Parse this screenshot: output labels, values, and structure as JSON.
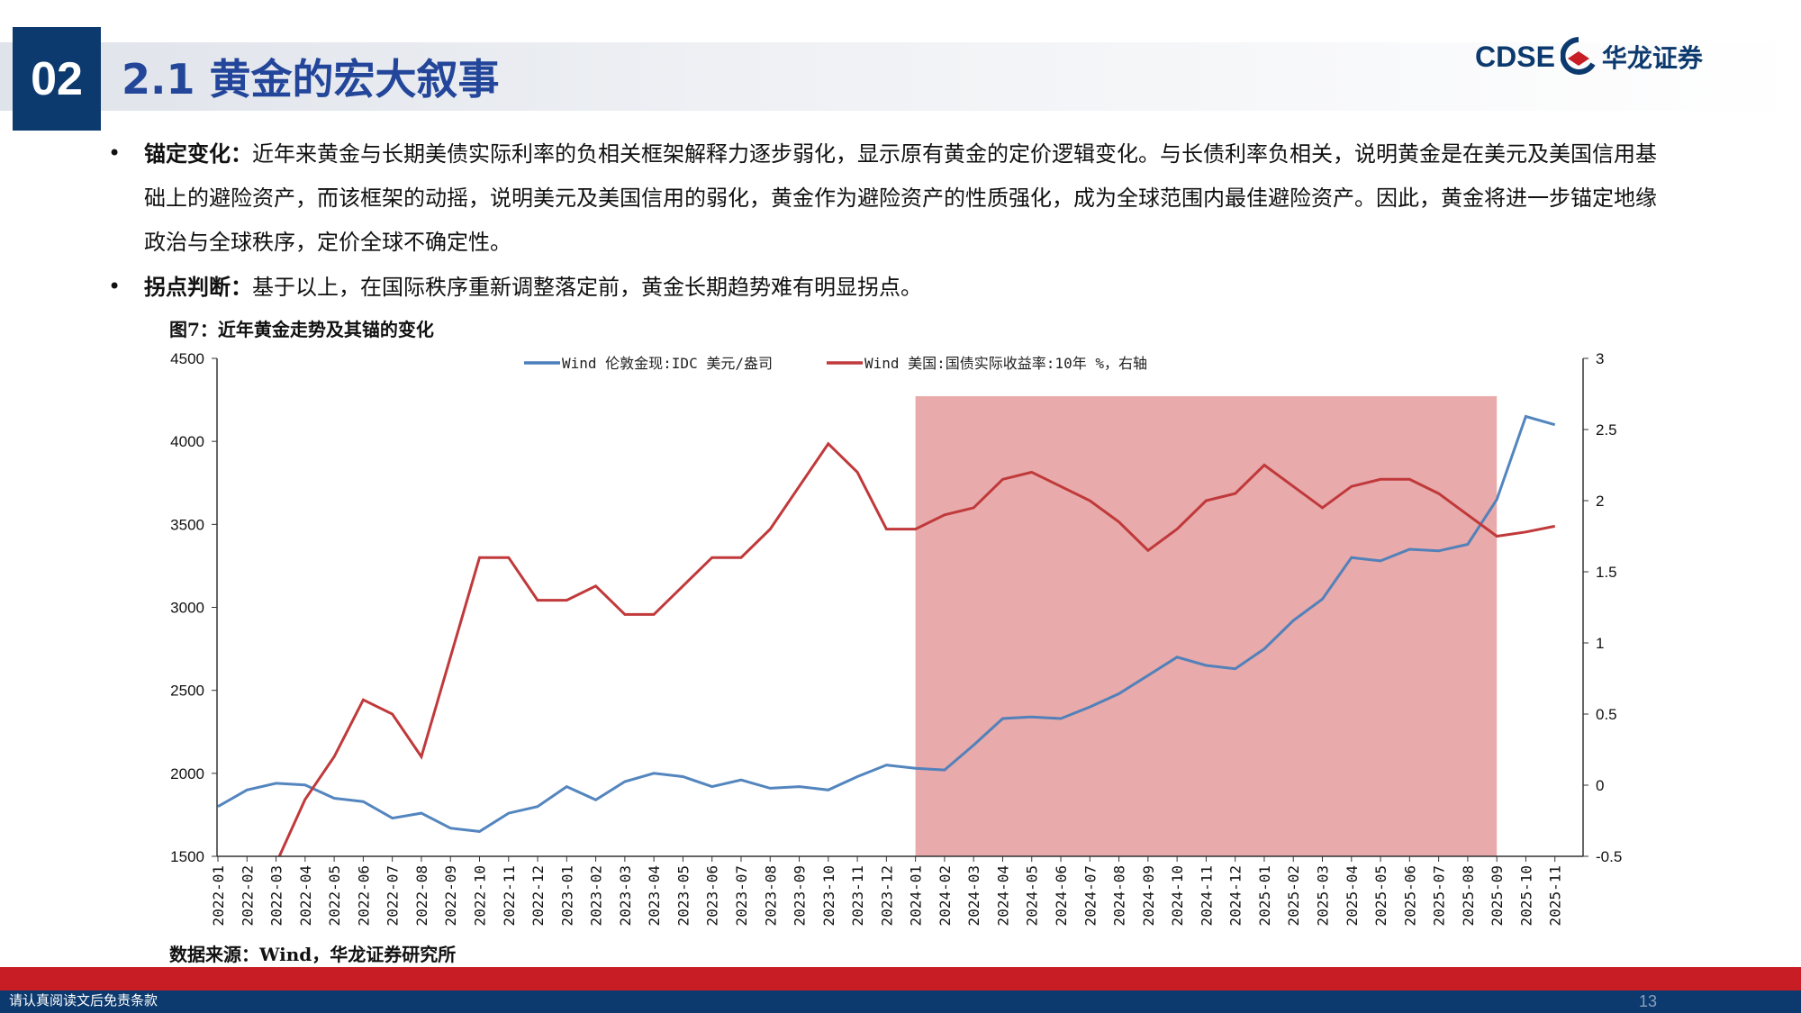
{
  "header": {
    "section_number": "02",
    "title": "2.1 黄金的宏大叙事",
    "logo_en": "CDSE",
    "logo_cn": "华龙证券"
  },
  "bullets": [
    {
      "label": "锚定变化：",
      "text": "近年来黄金与长期美债实际利率的负相关框架解释力逐步弱化，显示原有黄金的定价逻辑变化。与长债利率负相关，说明黄金是在美元及美国信用基础上的避险资产，而该框架的动摇，说明美元及美国信用的弱化，黄金作为避险资产的性质强化，成为全球范围内最佳避险资产。因此，黄金将进一步锚定地缘政治与全球秩序，定价全球不确定性。"
    },
    {
      "label": "拐点判断：",
      "text": "基于以上，在国际秩序重新调整落定前，黄金长期趋势难有明显拐点。"
    }
  ],
  "figure_title": "图7：近年黄金走势及其锚的变化",
  "source": "数据来源：Wind，华龙证券研究所",
  "footer": {
    "disclaimer": "请认真阅读文后免责条款",
    "page": "13"
  },
  "chart_data": {
    "type": "line",
    "title": "",
    "x": [
      "2022-01",
      "2022-02",
      "2022-03",
      "2022-04",
      "2022-05",
      "2022-06",
      "2022-07",
      "2022-08",
      "2022-09",
      "2022-10",
      "2022-11",
      "2022-12",
      "2023-01",
      "2023-02",
      "2023-03",
      "2023-04",
      "2023-05",
      "2023-06",
      "2023-07",
      "2023-08",
      "2023-09",
      "2023-10",
      "2023-11",
      "2023-12",
      "2024-01",
      "2024-02",
      "2024-03",
      "2024-04",
      "2024-05",
      "2024-06",
      "2024-07",
      "2024-08",
      "2024-09",
      "2024-10",
      "2024-11",
      "2024-12",
      "2025-01",
      "2025-02",
      "2025-03",
      "2025-04",
      "2025-05",
      "2025-06",
      "2025-07",
      "2025-08",
      "2025-09",
      "2025-10",
      "2025-11"
    ],
    "series": [
      {
        "name": "Wind 伦敦金现:IDC 美元/盎司",
        "axis": "left",
        "color": "#4a7ebb",
        "values": [
          1800,
          1900,
          1940,
          1930,
          1850,
          1830,
          1730,
          1760,
          1670,
          1650,
          1760,
          1800,
          1920,
          1840,
          1950,
          2000,
          1980,
          1920,
          1960,
          1910,
          1920,
          1900,
          1980,
          2050,
          2030,
          2020,
          2170,
          2330,
          2340,
          2330,
          2400,
          2480,
          2590,
          2700,
          2650,
          2630,
          2750,
          2920,
          3050,
          3300,
          3280,
          3350,
          3340,
          3380,
          3650,
          4150,
          4100
        ]
      },
      {
        "name": "Wind 美国:国债实际收益率:10年 %，右轴",
        "axis": "right",
        "color": "#c0393b",
        "values": [
          -0.7,
          -0.6,
          -0.55,
          -0.1,
          0.2,
          0.6,
          0.5,
          0.2,
          0.9,
          1.6,
          1.6,
          1.3,
          1.3,
          1.4,
          1.2,
          1.2,
          1.4,
          1.6,
          1.6,
          1.8,
          2.1,
          2.4,
          2.2,
          1.8,
          1.8,
          1.9,
          1.95,
          2.15,
          2.2,
          2.1,
          2.0,
          1.85,
          1.65,
          1.8,
          2.0,
          2.05,
          2.25,
          2.1,
          1.95,
          2.1,
          2.15,
          2.15,
          2.05,
          1.9,
          1.75,
          1.78,
          1.82
        ]
      }
    ],
    "y_left": {
      "min": 1500,
      "max": 4500,
      "ticks": [
        1500,
        2000,
        2500,
        3000,
        3500,
        4000,
        4500
      ]
    },
    "y_right": {
      "min": -0.5,
      "max": 3,
      "ticks": [
        -0.5,
        0,
        0.5,
        1,
        1.5,
        2,
        2.5,
        3
      ]
    },
    "highlight": {
      "from": "2024-01",
      "to": "2025-09",
      "color": "#e8aaaa"
    },
    "legend": "top-center",
    "grid": false
  }
}
